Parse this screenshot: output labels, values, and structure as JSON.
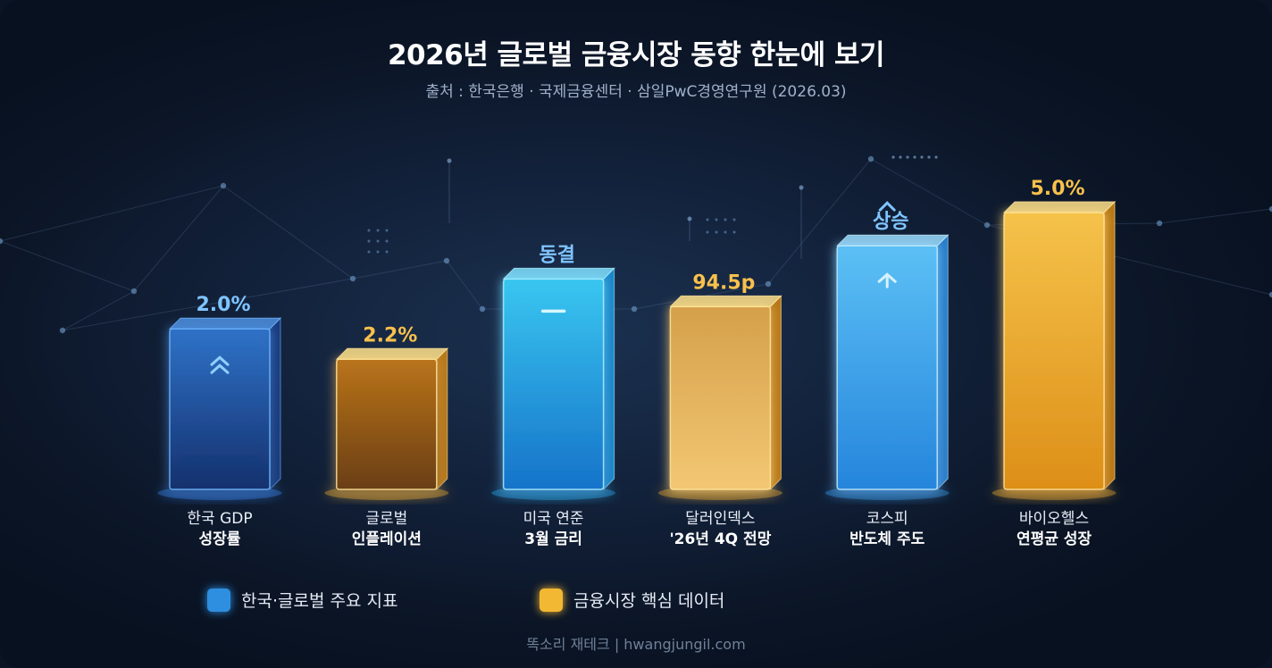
{
  "header": {
    "title": "2026년 글로벌 금융시장 동향 한눈에 보기",
    "subtitle": "출처 : 한국은행 · 국제금융센터 · 삼일PwC경영연구원 (2026.03)"
  },
  "chart_data": {
    "type": "bar",
    "title": "2026년 글로벌 금융시장 동향 한눈에 보기",
    "subtitle": "출처 : 한국은행 · 국제금융센터 · 삼일PwC경영연구원 (2026.03)",
    "xlabel": "",
    "ylabel": "",
    "grid": false,
    "legend_position": "bottom",
    "bars": [
      {
        "label_line1": "한국 GDP",
        "label_line2": "성장률",
        "value_label": "2.0%",
        "relative_height": 0.58,
        "series": "blue",
        "icon": "double-chevron-up-icon"
      },
      {
        "label_line1": "글로벌",
        "label_line2": "인플레이션",
        "value_label": "2.2%",
        "relative_height": 0.47,
        "series": "gold",
        "icon": ""
      },
      {
        "label_line1": "미국 연준",
        "label_line2": "3월 금리",
        "value_label": "동결",
        "relative_height": 0.76,
        "series": "cyan",
        "icon": "dash-icon"
      },
      {
        "label_line1": "달러인덱스",
        "label_line2": "'26년 4Q 전망",
        "value_label": "94.5p",
        "relative_height": 0.66,
        "series": "gold",
        "icon": ""
      },
      {
        "label_line1": "코스피",
        "label_line2": "반도체 주도",
        "value_label": "상승",
        "relative_height": 0.88,
        "series": "lightblue",
        "icon": "chevron-up-icon"
      },
      {
        "label_line1": "바이오헬스",
        "label_line2": "연평균 성장",
        "value_label": "5.0%",
        "relative_height": 1.0,
        "series": "gold",
        "icon": ""
      }
    ],
    "legend": [
      {
        "label": "한국·글로벌 주요 지표",
        "color": "#2e8ee0"
      },
      {
        "label": "금융시장 핵심 데이터",
        "color": "#f2b733"
      }
    ]
  },
  "colors": {
    "blue_value": "#7fc4ff",
    "gold_value": "#f8c04c"
  },
  "footer": {
    "credit": "똑소리 재테크 | hwangjungil.com"
  }
}
